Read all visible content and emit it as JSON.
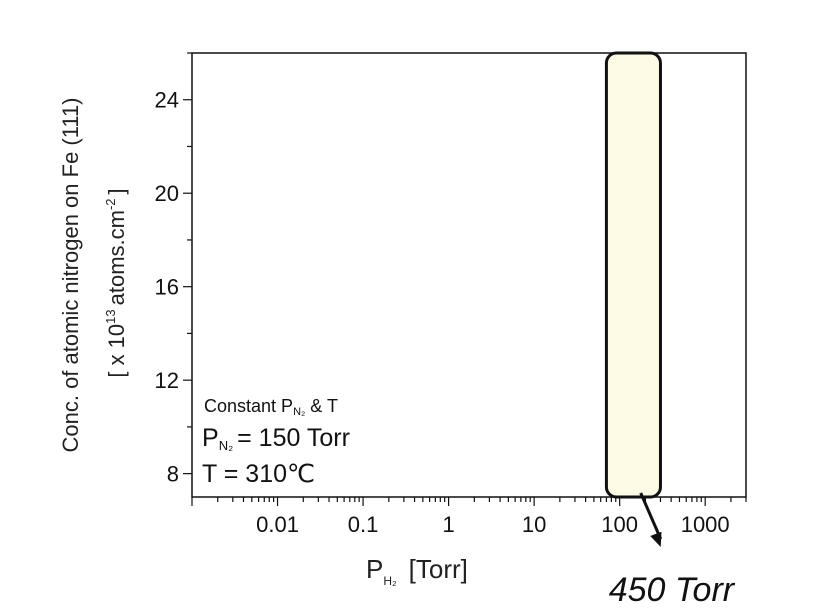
{
  "chart_data": {
    "type": "scatter",
    "title": "",
    "x_scale": "log",
    "xlim": [
      0.001,
      3000
    ],
    "ylim": [
      7,
      26
    ],
    "grid": false,
    "x_ticks": [
      {
        "value": 0.01,
        "label": "0.01"
      },
      {
        "value": 0.1,
        "label": "0.1"
      },
      {
        "value": 1,
        "label": "1"
      },
      {
        "value": 10,
        "label": "10"
      },
      {
        "value": 100,
        "label": "100"
      },
      {
        "value": 1000,
        "label": "1000"
      }
    ],
    "y_ticks": [
      {
        "value": 8,
        "label": "8"
      },
      {
        "value": 12,
        "label": "12"
      },
      {
        "value": 16,
        "label": "16"
      },
      {
        "value": 20,
        "label": "20"
      },
      {
        "value": 24,
        "label": "24"
      }
    ],
    "xlabel": {
      "main": "P",
      "sub": "H₂",
      "rest": "[Torr]"
    },
    "ylabel": {
      "line1": "Conc. of atomic nitrogen on Fe (111)",
      "line2_pre": "[ x 10",
      "line2_sup": "13",
      "line2_mid": "atoms.cm",
      "line2_sup2": "-2",
      "line2_end": "]"
    },
    "annotations": {
      "constant_pre": "Constant P",
      "constant_sub": "N₂",
      "constant_post": " & T",
      "pn2_main": "P",
      "pn2_sub": "N₂",
      "pn2_value": "= 150 Torr",
      "temperature": "T = 310℃"
    },
    "highlight_region": {
      "x_from": 70,
      "x_to": 300,
      "y_from": 7,
      "y_to": 26,
      "color": "#fdfbe6",
      "stroke": "#111111"
    },
    "callout": {
      "label": "450 Torr",
      "x_value": 150
    }
  }
}
